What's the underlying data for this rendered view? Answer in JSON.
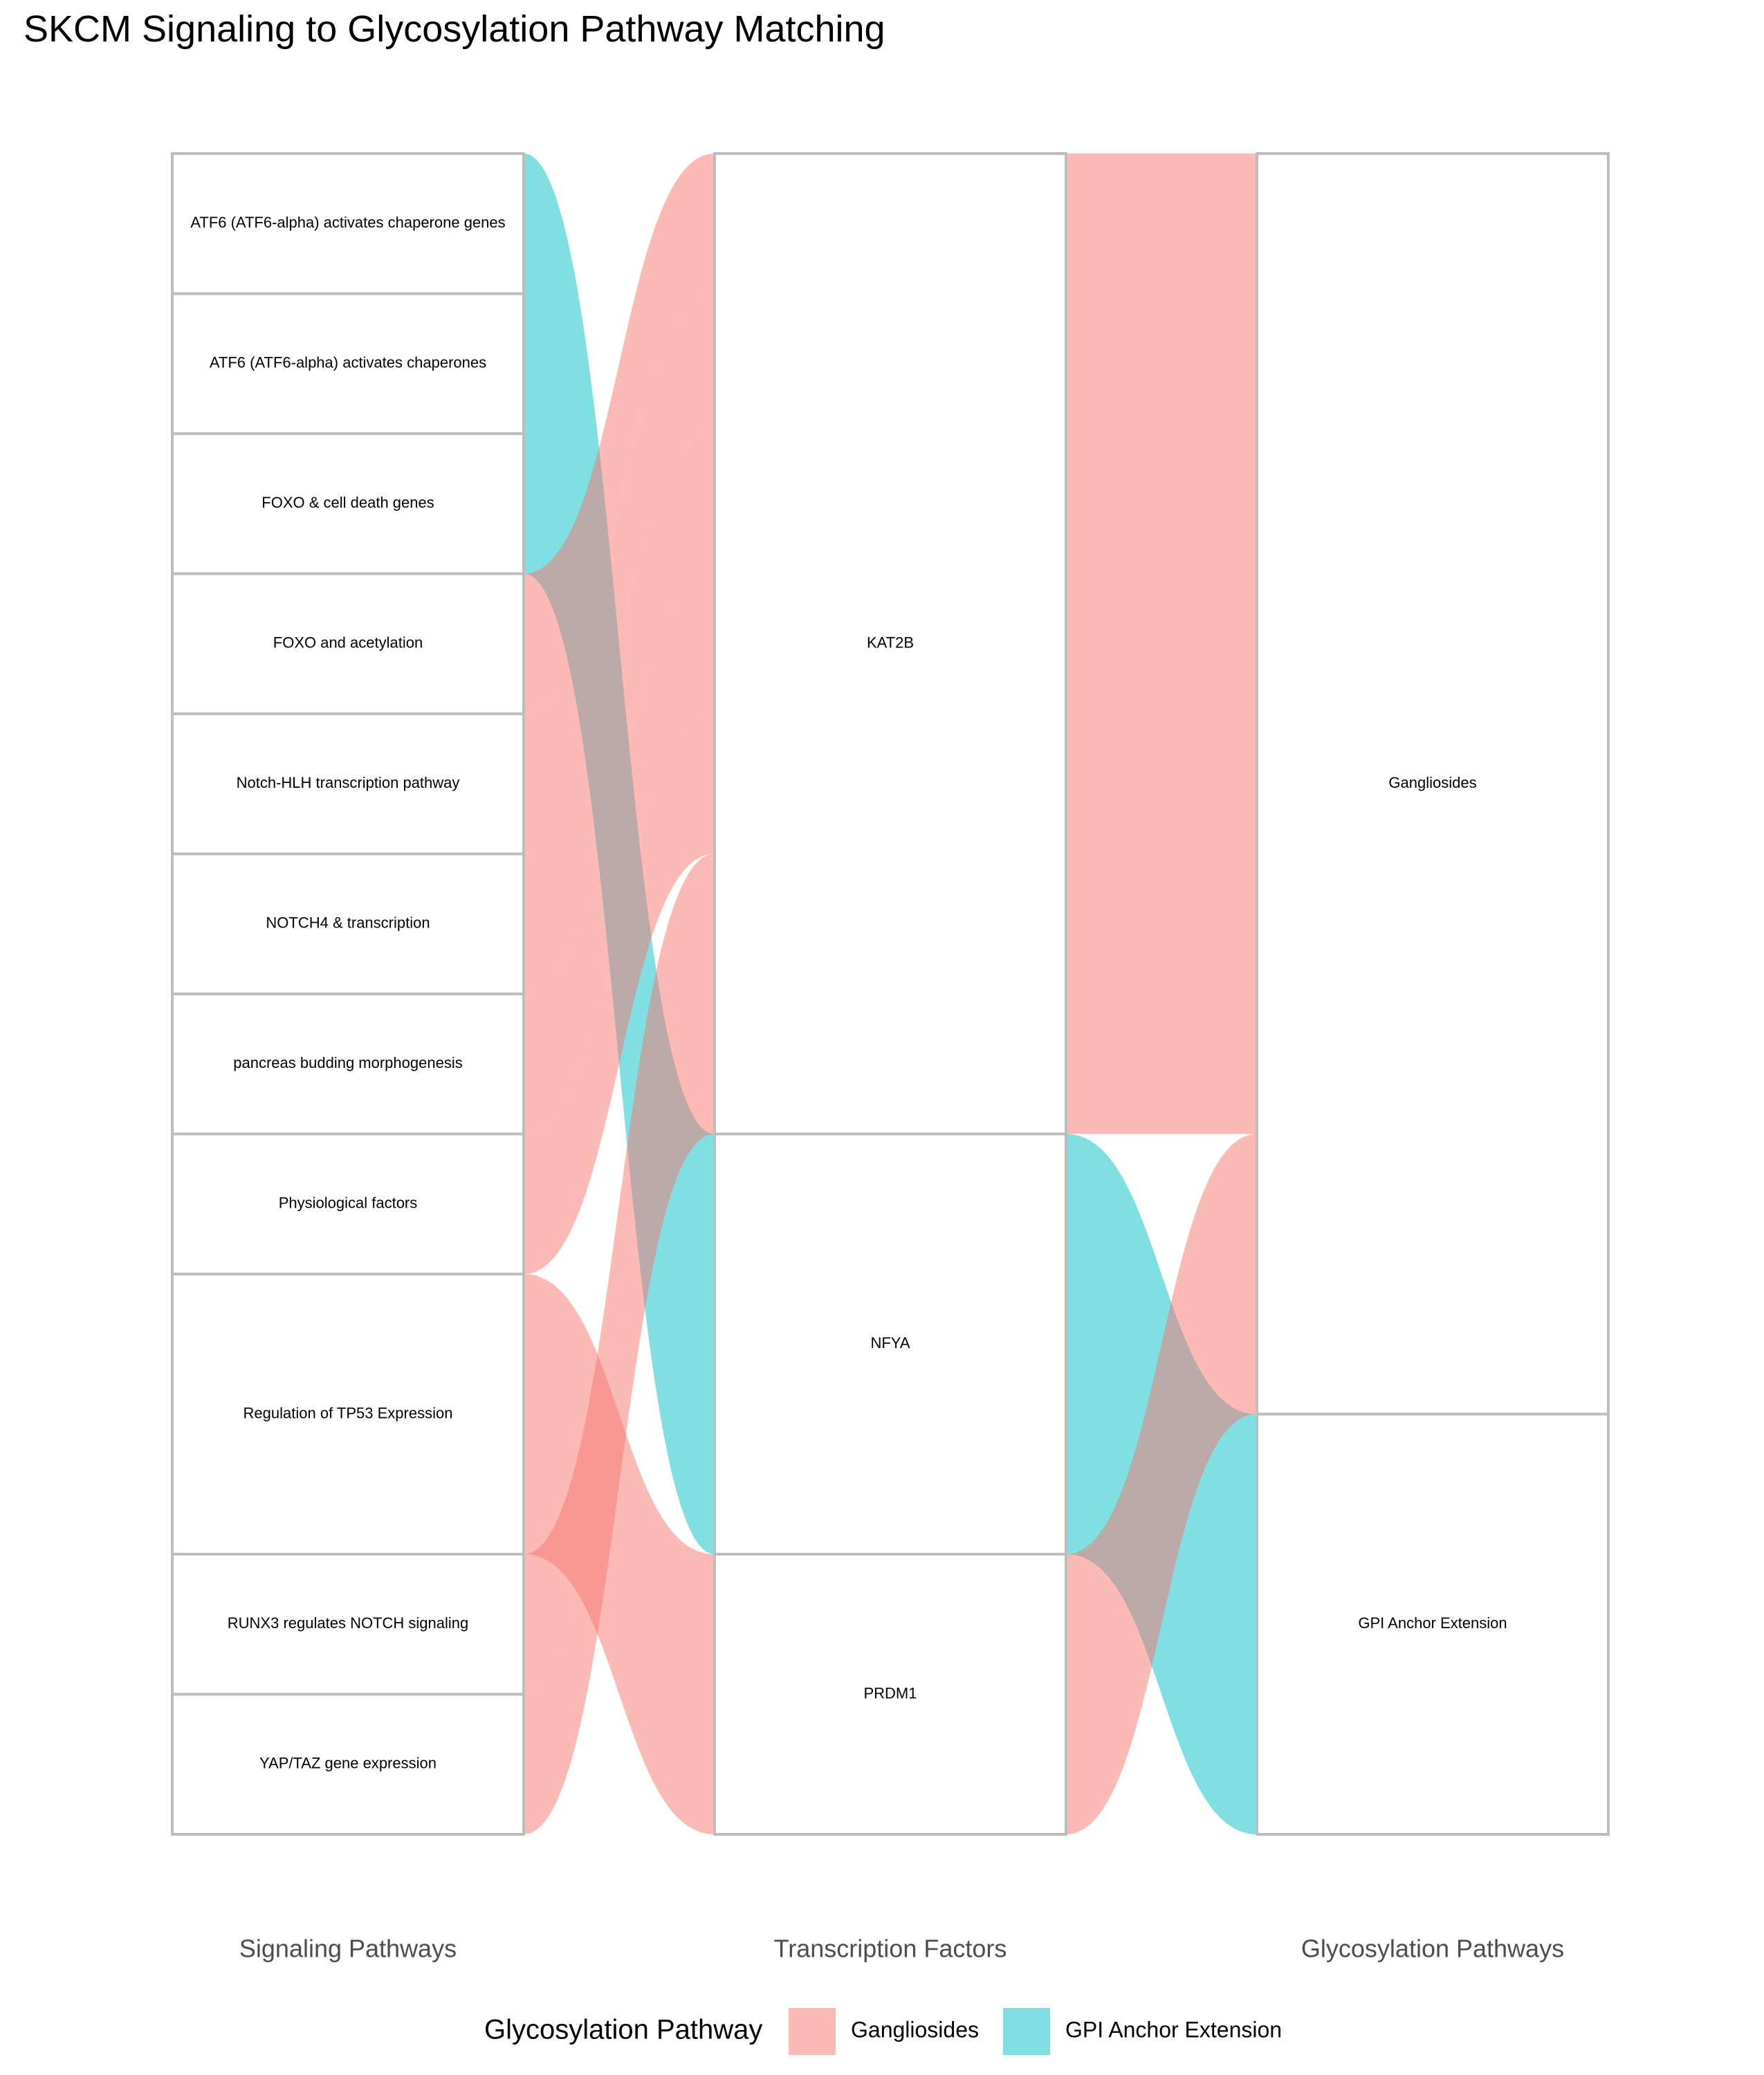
{
  "title": "SKCM Signaling to Glycosylation Pathway Matching",
  "colors": {
    "Gangliosides": "#F8766D",
    "GPI Anchor Extension": "#00BFC4",
    "stratum_border": "#BDBDBD"
  },
  "chart_data": {
    "type": "alluvial",
    "axes": [
      "Signaling Pathways",
      "Transcription Factors",
      "Glycosylation Pathways"
    ],
    "strata": {
      "Signaling Pathways": [
        {
          "name": "ATF6 (ATF6-alpha) activates chaperone genes",
          "count": 1
        },
        {
          "name": "ATF6 (ATF6-alpha) activates chaperones",
          "count": 1
        },
        {
          "name": "FOXO & cell death genes",
          "count": 1
        },
        {
          "name": "FOXO and acetylation",
          "count": 1
        },
        {
          "name": "Notch-HLH transcription pathway",
          "count": 1
        },
        {
          "name": "NOTCH4 & transcription",
          "count": 1
        },
        {
          "name": "pancreas budding morphogenesis",
          "count": 1
        },
        {
          "name": "Physiological factors",
          "count": 1
        },
        {
          "name": "Regulation of TP53 Expression",
          "count": 2
        },
        {
          "name": "RUNX3 regulates NOTCH signaling",
          "count": 1
        },
        {
          "name": "YAP/TAZ gene expression",
          "count": 1
        }
      ],
      "Transcription Factors": [
        {
          "name": "KAT2B",
          "count": 7
        },
        {
          "name": "NFYA",
          "count": 3
        },
        {
          "name": "PRDM1",
          "count": 2
        }
      ],
      "Glycosylation Pathways": [
        {
          "name": "Gangliosides",
          "count": 9
        },
        {
          "name": "GPI Anchor Extension",
          "count": 3
        }
      ]
    },
    "flows": [
      {
        "path": [
          "ATF6 (ATF6-alpha) activates chaperone genes",
          "NFYA",
          "GPI Anchor Extension"
        ],
        "value": 1,
        "fill": "GPI Anchor Extension"
      },
      {
        "path": [
          "ATF6 (ATF6-alpha) activates chaperones",
          "NFYA",
          "GPI Anchor Extension"
        ],
        "value": 1,
        "fill": "GPI Anchor Extension"
      },
      {
        "path": [
          "FOXO & cell death genes",
          "NFYA",
          "GPI Anchor Extension"
        ],
        "value": 1,
        "fill": "GPI Anchor Extension"
      },
      {
        "path": [
          "FOXO and acetylation",
          "KAT2B",
          "Gangliosides"
        ],
        "value": 1,
        "fill": "Gangliosides"
      },
      {
        "path": [
          "Notch-HLH transcription pathway",
          "KAT2B",
          "Gangliosides"
        ],
        "value": 1,
        "fill": "Gangliosides"
      },
      {
        "path": [
          "NOTCH4 & transcription",
          "KAT2B",
          "Gangliosides"
        ],
        "value": 1,
        "fill": "Gangliosides"
      },
      {
        "path": [
          "pancreas budding morphogenesis",
          "KAT2B",
          "Gangliosides"
        ],
        "value": 1,
        "fill": "Gangliosides"
      },
      {
        "path": [
          "Physiological factors",
          "KAT2B",
          "Gangliosides"
        ],
        "value": 1,
        "fill": "Gangliosides"
      },
      {
        "path": [
          "Regulation of TP53 Expression",
          "PRDM1",
          "Gangliosides"
        ],
        "value": 2,
        "fill": "Gangliosides"
      },
      {
        "path": [
          "RUNX3 regulates NOTCH signaling",
          "KAT2B",
          "Gangliosides"
        ],
        "value": 1,
        "fill": "Gangliosides"
      },
      {
        "path": [
          "YAP/TAZ gene expression",
          "KAT2B",
          "Gangliosides"
        ],
        "value": 1,
        "fill": "Gangliosides"
      }
    ],
    "legend": {
      "title": "Glycosylation Pathway",
      "position": "bottom",
      "entries": [
        "Gangliosides",
        "GPI Anchor Extension"
      ]
    }
  }
}
